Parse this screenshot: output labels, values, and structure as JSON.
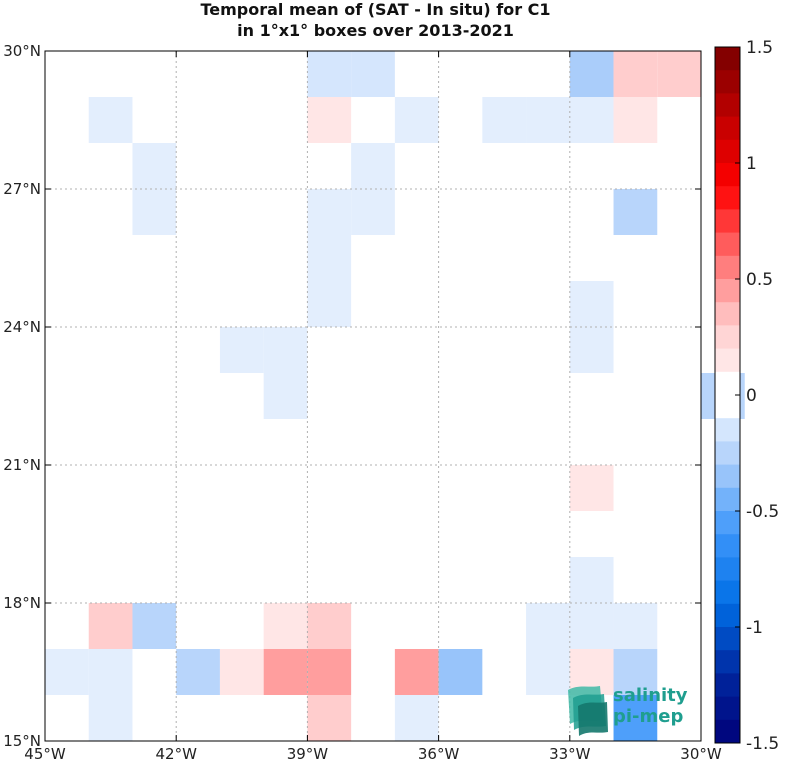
{
  "chart_data": {
    "type": "heatmap",
    "title": "Temporal mean of (SAT - In situ) for C1",
    "subtitle": "in 1°x1° boxes over 2013-2021",
    "xlim": [
      -45,
      -30
    ],
    "ylim": [
      15,
      30
    ],
    "grid": true,
    "x_ticks": [
      -45,
      -42,
      -39,
      -36,
      -33,
      -30
    ],
    "x_tick_labels": [
      "45°W",
      "42°W",
      "39°W",
      "36°W",
      "33°W",
      "30°W"
    ],
    "y_ticks": [
      15,
      18,
      21,
      24,
      27,
      30
    ],
    "y_tick_labels": [
      "15°N",
      "18°N",
      "21°N",
      "24°N",
      "27°N",
      "30°N"
    ],
    "colorbar": {
      "min": -1.5,
      "max": 1.5,
      "ticks": [
        -1.5,
        -1,
        -0.5,
        0,
        0.5,
        1,
        1.5
      ],
      "tick_labels": [
        "-1.5",
        "-1",
        "-0.5",
        "0",
        "0.5",
        "1",
        "1.5"
      ],
      "colormap": "blue-white-red"
    },
    "cells_description": "Each cell is a 1°x1° box; lon/lat give the box's south-west corner, value in colorbar units",
    "cells": [
      {
        "lon": -39,
        "lat": 29,
        "value": -0.15
      },
      {
        "lon": -38,
        "lat": 29,
        "value": -0.15
      },
      {
        "lon": -33,
        "lat": 29,
        "value": -0.3
      },
      {
        "lon": -32,
        "lat": 29,
        "value": 0.3
      },
      {
        "lon": -31,
        "lat": 29,
        "value": 0.3
      },
      {
        "lon": -44,
        "lat": 28,
        "value": -0.1
      },
      {
        "lon": -39,
        "lat": 28,
        "value": 0.15
      },
      {
        "lon": -37,
        "lat": 28,
        "value": -0.1
      },
      {
        "lon": -35,
        "lat": 28,
        "value": -0.1
      },
      {
        "lon": -34,
        "lat": 28,
        "value": -0.1
      },
      {
        "lon": -33,
        "lat": 28,
        "value": -0.1
      },
      {
        "lon": -32,
        "lat": 28,
        "value": 0.15
      },
      {
        "lon": -43,
        "lat": 27,
        "value": -0.1
      },
      {
        "lon": -38,
        "lat": 27,
        "value": -0.1
      },
      {
        "lon": -43,
        "lat": 26,
        "value": -0.1
      },
      {
        "lon": -39,
        "lat": 26,
        "value": -0.1
      },
      {
        "lon": -38,
        "lat": 26,
        "value": -0.1
      },
      {
        "lon": -32,
        "lat": 26,
        "value": -0.25
      },
      {
        "lon": -39,
        "lat": 25,
        "value": -0.1
      },
      {
        "lon": -39,
        "lat": 24,
        "value": -0.1
      },
      {
        "lon": -33,
        "lat": 24,
        "value": -0.1
      },
      {
        "lon": -41,
        "lat": 23,
        "value": -0.1
      },
      {
        "lon": -40,
        "lat": 23,
        "value": -0.1
      },
      {
        "lon": -33,
        "lat": 23,
        "value": -0.1
      },
      {
        "lon": -40,
        "lat": 22,
        "value": -0.1
      },
      {
        "lon": -30,
        "lat": 22,
        "value": -0.25
      },
      {
        "lon": -33,
        "lat": 20,
        "value": 0.15
      },
      {
        "lon": -33,
        "lat": 18,
        "value": -0.1
      },
      {
        "lon": -44,
        "lat": 17,
        "value": 0.3
      },
      {
        "lon": -43,
        "lat": 17,
        "value": -0.25
      },
      {
        "lon": -40,
        "lat": 17,
        "value": 0.15
      },
      {
        "lon": -39,
        "lat": 17,
        "value": 0.3
      },
      {
        "lon": -34,
        "lat": 17,
        "value": -0.1
      },
      {
        "lon": -33,
        "lat": 17,
        "value": -0.1
      },
      {
        "lon": -32,
        "lat": 17,
        "value": -0.1
      },
      {
        "lon": -45,
        "lat": 16,
        "value": -0.1
      },
      {
        "lon": -44,
        "lat": 16,
        "value": -0.1
      },
      {
        "lon": -42,
        "lat": 16,
        "value": -0.25
      },
      {
        "lon": -41,
        "lat": 16,
        "value": 0.15
      },
      {
        "lon": -40,
        "lat": 16,
        "value": 0.45
      },
      {
        "lon": -39,
        "lat": 16,
        "value": 0.45
      },
      {
        "lon": -37,
        "lat": 16,
        "value": 0.45
      },
      {
        "lon": -36,
        "lat": 16,
        "value": -0.35
      },
      {
        "lon": -34,
        "lat": 16,
        "value": -0.1
      },
      {
        "lon": -33,
        "lat": 16,
        "value": 0.15
      },
      {
        "lon": -32,
        "lat": 16,
        "value": -0.25
      },
      {
        "lon": -44,
        "lat": 15,
        "value": -0.1
      },
      {
        "lon": -39,
        "lat": 15,
        "value": 0.3
      },
      {
        "lon": -37,
        "lat": 15,
        "value": -0.1
      },
      {
        "lon": -32,
        "lat": 15,
        "value": -0.55
      }
    ]
  },
  "logo": {
    "line1": "salinity",
    "line2": "pi-mep"
  },
  "colors": {
    "grid": "#b0b0b0",
    "axis": "#000000",
    "logo_teal": "#1f9e8f"
  }
}
